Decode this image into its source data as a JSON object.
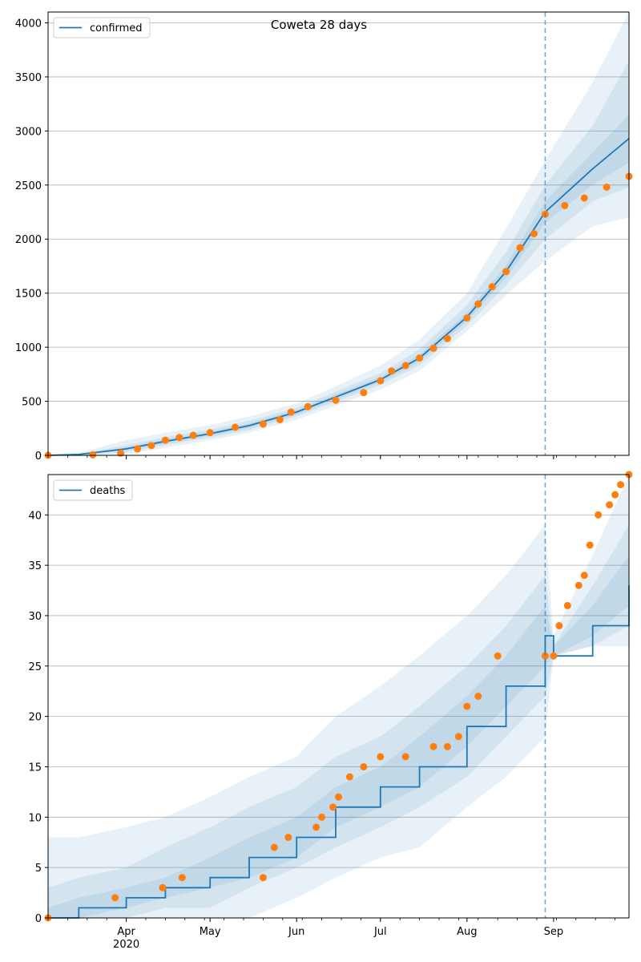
{
  "title": "Coweta 28 days",
  "colors": {
    "model": "#1f77b4",
    "observed": "#ff7f0e",
    "band": "#1f77b4",
    "grid": "#b0b0b0",
    "forecast_line": "#1f77b4"
  },
  "chart_data": [
    {
      "type": "line",
      "legend": [
        "confirmed"
      ],
      "legend_placement": "upper-left",
      "grid": "horizontal",
      "x_type": "date",
      "xlim": [
        "2020-03-04",
        "2020-09-28"
      ],
      "ylim": [
        0,
        4100
      ],
      "y_ticks": [
        0,
        500,
        1000,
        1500,
        2000,
        2500,
        3000,
        3500,
        4000
      ],
      "x_tick_labels": [
        "Apr",
        "May",
        "Jun",
        "Jul",
        "Aug",
        "Sep"
      ],
      "x_tick_dates": [
        "2020-04-01",
        "2020-05-01",
        "2020-06-01",
        "2020-07-01",
        "2020-08-01",
        "2020-09-01"
      ],
      "year_label": "2020",
      "forecast_start": "2020-08-29",
      "model_series": {
        "name": "confirmed",
        "x": [
          "2020-03-04",
          "2020-03-15",
          "2020-04-01",
          "2020-04-15",
          "2020-05-01",
          "2020-05-15",
          "2020-06-01",
          "2020-06-15",
          "2020-07-01",
          "2020-07-15",
          "2020-08-01",
          "2020-08-15",
          "2020-08-29",
          "2020-09-15",
          "2020-09-28"
        ],
        "y": [
          0,
          8,
          60,
          130,
          200,
          275,
          400,
          540,
          700,
          900,
          1280,
          1700,
          2250,
          2650,
          2930
        ]
      },
      "bands": [
        {
          "lower": [
            0,
            0,
            10,
            70,
            140,
            210,
            330,
            460,
            610,
            780,
            1150,
            1480,
            1800,
            2120,
            2200
          ],
          "upper": [
            10,
            25,
            140,
            210,
            280,
            360,
            480,
            640,
            830,
            1070,
            1500,
            2100,
            2730,
            3450,
            4100
          ]
        },
        {
          "lower": [
            0,
            2,
            30,
            95,
            165,
            235,
            360,
            495,
            650,
            835,
            1200,
            1570,
            2000,
            2350,
            2480
          ],
          "upper": [
            5,
            15,
            95,
            170,
            240,
            320,
            440,
            590,
            760,
            980,
            1390,
            1880,
            2500,
            3050,
            3650
          ]
        },
        {
          "lower": [
            0,
            5,
            45,
            112,
            182,
            255,
            380,
            518,
            676,
            868,
            1240,
            1640,
            2150,
            2500,
            2710
          ],
          "upper": [
            2,
            10,
            75,
            148,
            218,
            295,
            420,
            562,
            724,
            932,
            1320,
            1760,
            2350,
            2800,
            3150
          ]
        }
      ],
      "observed": {
        "x": [
          "2020-03-04",
          "2020-03-20",
          "2020-03-30",
          "2020-04-05",
          "2020-04-10",
          "2020-04-15",
          "2020-04-20",
          "2020-04-25",
          "2020-05-01",
          "2020-05-10",
          "2020-05-20",
          "2020-05-26",
          "2020-05-30",
          "2020-06-05",
          "2020-06-15",
          "2020-06-25",
          "2020-07-01",
          "2020-07-05",
          "2020-07-10",
          "2020-07-15",
          "2020-07-20",
          "2020-07-25",
          "2020-08-01",
          "2020-08-05",
          "2020-08-10",
          "2020-08-15",
          "2020-08-20",
          "2020-08-25",
          "2020-08-29",
          "2020-09-05",
          "2020-09-12",
          "2020-09-20",
          "2020-09-28"
        ],
        "y": [
          0,
          5,
          20,
          60,
          90,
          140,
          165,
          185,
          210,
          260,
          290,
          330,
          400,
          450,
          510,
          580,
          690,
          780,
          830,
          900,
          990,
          1080,
          1270,
          1400,
          1560,
          1700,
          1920,
          2050,
          2230,
          2310,
          2380,
          2480,
          2580
        ]
      }
    },
    {
      "type": "line",
      "legend": [
        "deaths"
      ],
      "legend_placement": "upper-left",
      "grid": "horizontal",
      "x_type": "date",
      "xlim": [
        "2020-03-04",
        "2020-09-28"
      ],
      "ylim": [
        0,
        44
      ],
      "y_ticks": [
        0,
        5,
        10,
        15,
        20,
        25,
        30,
        35,
        40
      ],
      "x_tick_labels": [
        "Apr",
        "May",
        "Jun",
        "Jul",
        "Aug",
        "Sep"
      ],
      "x_tick_dates": [
        "2020-04-01",
        "2020-05-01",
        "2020-06-01",
        "2020-07-01",
        "2020-08-01",
        "2020-09-01"
      ],
      "year_label": "2020",
      "forecast_start": "2020-08-29",
      "model_series": {
        "name": "deaths",
        "x": [
          "2020-03-04",
          "2020-03-15",
          "2020-04-01",
          "2020-04-15",
          "2020-05-01",
          "2020-05-15",
          "2020-06-01",
          "2020-06-15",
          "2020-07-01",
          "2020-07-15",
          "2020-08-01",
          "2020-08-15",
          "2020-08-29",
          "2020-09-01",
          "2020-09-15",
          "2020-09-28"
        ],
        "y": [
          0,
          1,
          2,
          3,
          4,
          6,
          8,
          11,
          13,
          15,
          19,
          23,
          28,
          26,
          29,
          33
        ]
      },
      "bands": [
        {
          "lower": [
            0,
            0,
            0,
            0,
            0,
            0,
            2,
            4,
            6,
            7,
            11,
            14,
            18,
            26,
            27,
            27
          ],
          "upper": [
            8,
            8,
            9,
            10,
            12,
            14,
            16,
            20,
            23,
            26,
            30,
            34,
            39,
            28,
            36,
            44
          ]
        },
        {
          "lower": [
            0,
            0,
            0,
            1,
            1,
            3,
            5,
            7,
            9,
            11,
            14,
            18,
            22,
            26,
            27,
            29
          ],
          "upper": [
            3,
            4,
            5,
            7,
            9,
            11,
            13,
            16,
            18,
            21,
            25,
            29,
            34,
            27,
            33,
            39
          ]
        },
        {
          "lower": [
            0,
            0,
            1,
            2,
            3,
            4,
            6,
            9,
            11,
            13,
            17,
            21,
            25,
            26,
            28,
            31
          ],
          "upper": [
            1,
            2,
            3,
            4,
            6,
            8,
            10,
            13,
            15,
            18,
            22,
            26,
            31,
            27,
            31,
            36
          ]
        }
      ],
      "observed": {
        "x": [
          "2020-03-04",
          "2020-03-28",
          "2020-04-14",
          "2020-04-21",
          "2020-05-20",
          "2020-05-24",
          "2020-05-29",
          "2020-06-08",
          "2020-06-10",
          "2020-06-14",
          "2020-06-16",
          "2020-06-20",
          "2020-06-25",
          "2020-07-01",
          "2020-07-10",
          "2020-07-20",
          "2020-07-25",
          "2020-07-29",
          "2020-08-01",
          "2020-08-05",
          "2020-08-12",
          "2020-08-29",
          "2020-09-01",
          "2020-09-03",
          "2020-09-06",
          "2020-09-10",
          "2020-09-12",
          "2020-09-14",
          "2020-09-17",
          "2020-09-21",
          "2020-09-23",
          "2020-09-25",
          "2020-09-28"
        ],
        "y": [
          0,
          2,
          3,
          4,
          4,
          7,
          8,
          9,
          10,
          11,
          12,
          14,
          15,
          16,
          16,
          17,
          17,
          18,
          21,
          22,
          26,
          26,
          26,
          29,
          31,
          33,
          34,
          37,
          40,
          41,
          42,
          43,
          44
        ]
      }
    }
  ]
}
